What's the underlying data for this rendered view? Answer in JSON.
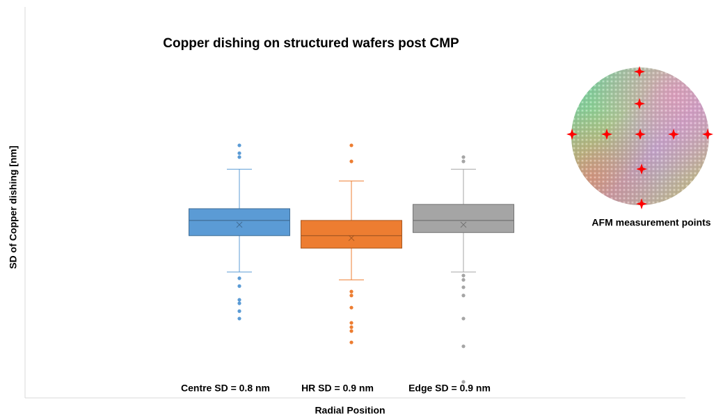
{
  "chart_data": {
    "type": "box",
    "title": "Copper dishing on structured wafers post CMP",
    "x_label": "Radial Position",
    "y_label": "SD of Copper dishing [nm]",
    "annotation": "AFM measurement points",
    "categories": [
      "Centre SD = 0.8 nm",
      "HR SD = 0.9 nm",
      "Edge SD = 0.9 nm"
    ],
    "ylim": [
      0,
      100
    ],
    "boxes": [
      {
        "color": "#5b9bd5",
        "whisker_low": 32.2,
        "q1": 41.5,
        "median": 45.4,
        "q3": 48.4,
        "whisker_high": 58.5,
        "mean": 44.3,
        "outliers": [
          64.6,
          62.6,
          61.6,
          30.6,
          28.6,
          25.1,
          24.2,
          22.2,
          20.3
        ]
      },
      {
        "color": "#ed7d31",
        "whisker_low": 30.2,
        "q1": 38.3,
        "median": 41.5,
        "q3": 45.4,
        "whisker_high": 55.5,
        "mean": 40.9,
        "outliers": [
          64.6,
          60.5,
          27.2,
          26.2,
          23.1,
          19.2,
          18.1,
          17.1,
          14.2
        ]
      },
      {
        "color": "#a5a5a5",
        "whisker_low": 32.2,
        "q1": 42.3,
        "median": 45.4,
        "q3": 49.5,
        "whisker_high": 58.5,
        "mean": 44.3,
        "outliers": [
          61.6,
          60.5,
          31.3,
          30.2,
          28.3,
          26.2,
          20.3,
          13.2,
          4.1
        ]
      }
    ]
  }
}
